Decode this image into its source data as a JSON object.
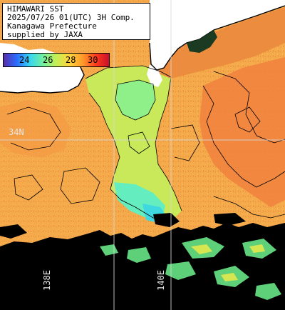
{
  "title": {
    "line1": "HIMAWARI SST",
    "line2": "2025/07/26 01(UTC) 3H Comp.",
    "line3": "Kanagawa Prefecture",
    "line4": "supplied by JAXA"
  },
  "legend": {
    "ticks": [
      "24",
      "26",
      "28",
      "30"
    ],
    "colors": [
      "#5a2ea8",
      "#2a6cff",
      "#36d6f0",
      "#72f0a0",
      "#c4ef54",
      "#ffd43a",
      "#ff9a2a",
      "#ff3a1c",
      "#c8102a"
    ]
  },
  "grid": {
    "lat_label": "34N",
    "lon_labels": [
      "138E",
      "140E"
    ]
  },
  "colors": {
    "land": "#ffffff",
    "cloud": "#000000",
    "sea_warm": "#f4a94a",
    "sea_mid": "#c9ea5a",
    "sea_cool": "#6ef0a8",
    "sea_hot": "#f47a3a",
    "coast": "#000000",
    "grid": "#d8d8d8"
  }
}
